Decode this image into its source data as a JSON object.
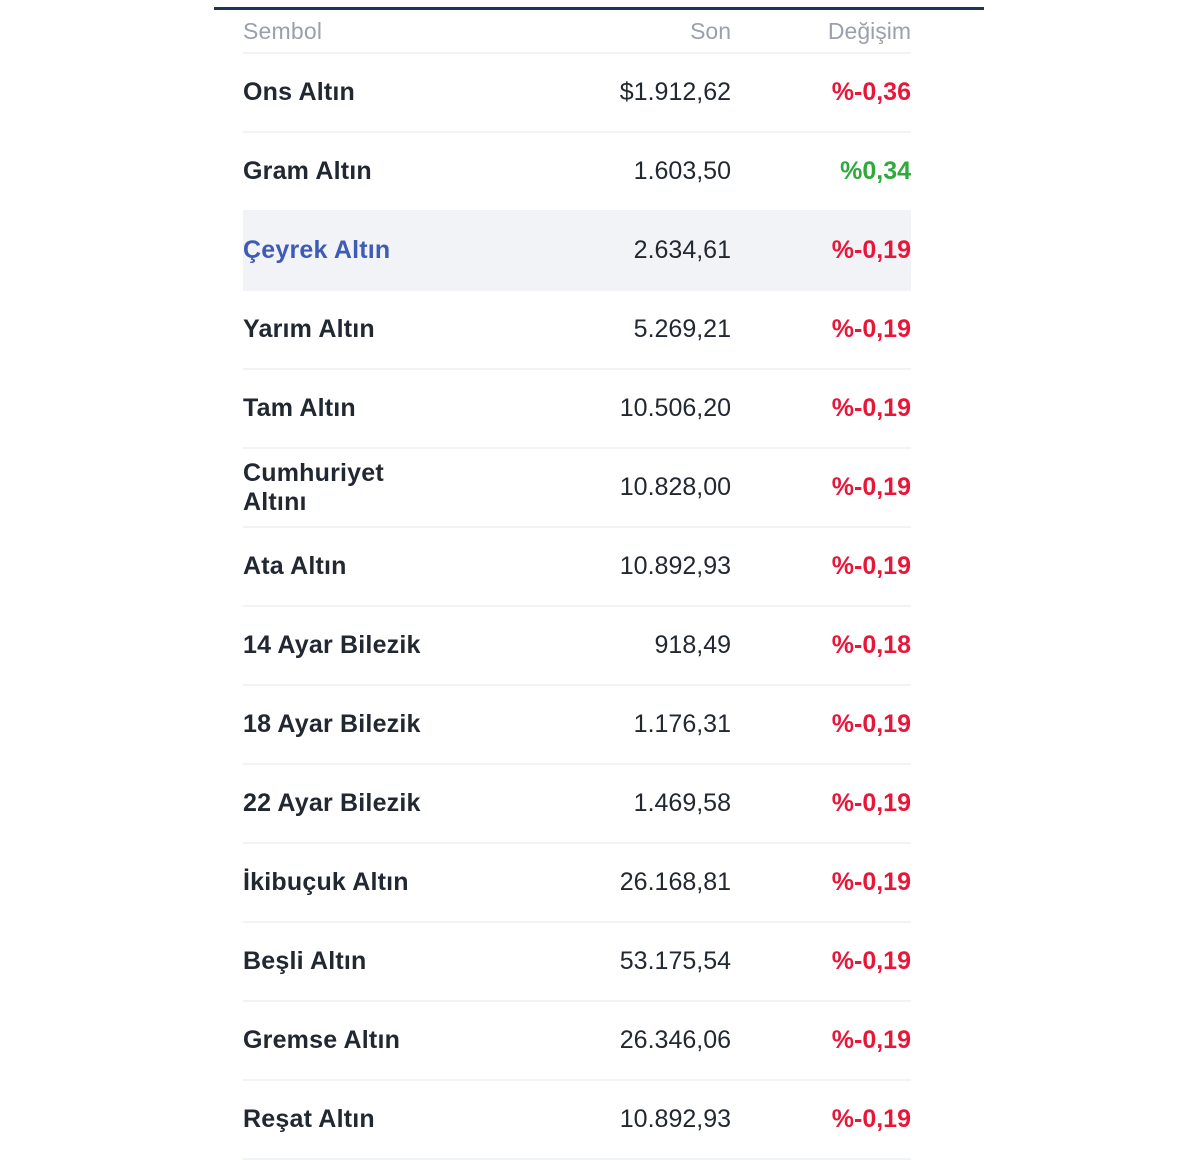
{
  "colors": {
    "accent_line": "#1d3557",
    "negative": "#e8173a",
    "positive": "#2eaa3b",
    "highlight_text": "#3e5bb5"
  },
  "header": {
    "symbol": "Sembol",
    "last": "Son",
    "change": "Değişim"
  },
  "rows": [
    {
      "symbol": "Ons Altın",
      "last": "$1.912,62",
      "change": "%-0,36",
      "direction": "down"
    },
    {
      "symbol": "Gram Altın",
      "last": "1.603,50",
      "change": "%0,34",
      "direction": "up"
    },
    {
      "symbol": "Çeyrek Altın",
      "last": "2.634,61",
      "change": "%-0,19",
      "direction": "down",
      "highlighted": true
    },
    {
      "symbol": "Yarım Altın",
      "last": "5.269,21",
      "change": "%-0,19",
      "direction": "down"
    },
    {
      "symbol": "Tam Altın",
      "last": "10.506,20",
      "change": "%-0,19",
      "direction": "down"
    },
    {
      "symbol": "Cumhuriyet Altını",
      "last": "10.828,00",
      "change": "%-0,19",
      "direction": "down"
    },
    {
      "symbol": "Ata Altın",
      "last": "10.892,93",
      "change": "%-0,19",
      "direction": "down"
    },
    {
      "symbol": "14 Ayar Bilezik",
      "last": "918,49",
      "change": "%-0,18",
      "direction": "down"
    },
    {
      "symbol": "18 Ayar Bilezik",
      "last": "1.176,31",
      "change": "%-0,19",
      "direction": "down"
    },
    {
      "symbol": "22 Ayar Bilezik",
      "last": "1.469,58",
      "change": "%-0,19",
      "direction": "down"
    },
    {
      "symbol": "İkibuçuk Altın",
      "last": "26.168,81",
      "change": "%-0,19",
      "direction": "down"
    },
    {
      "symbol": "Beşli Altın",
      "last": "53.175,54",
      "change": "%-0,19",
      "direction": "down"
    },
    {
      "symbol": "Gremse Altın",
      "last": "26.346,06",
      "change": "%-0,19",
      "direction": "down"
    },
    {
      "symbol": "Reşat Altın",
      "last": "10.892,93",
      "change": "%-0,19",
      "direction": "down"
    }
  ]
}
